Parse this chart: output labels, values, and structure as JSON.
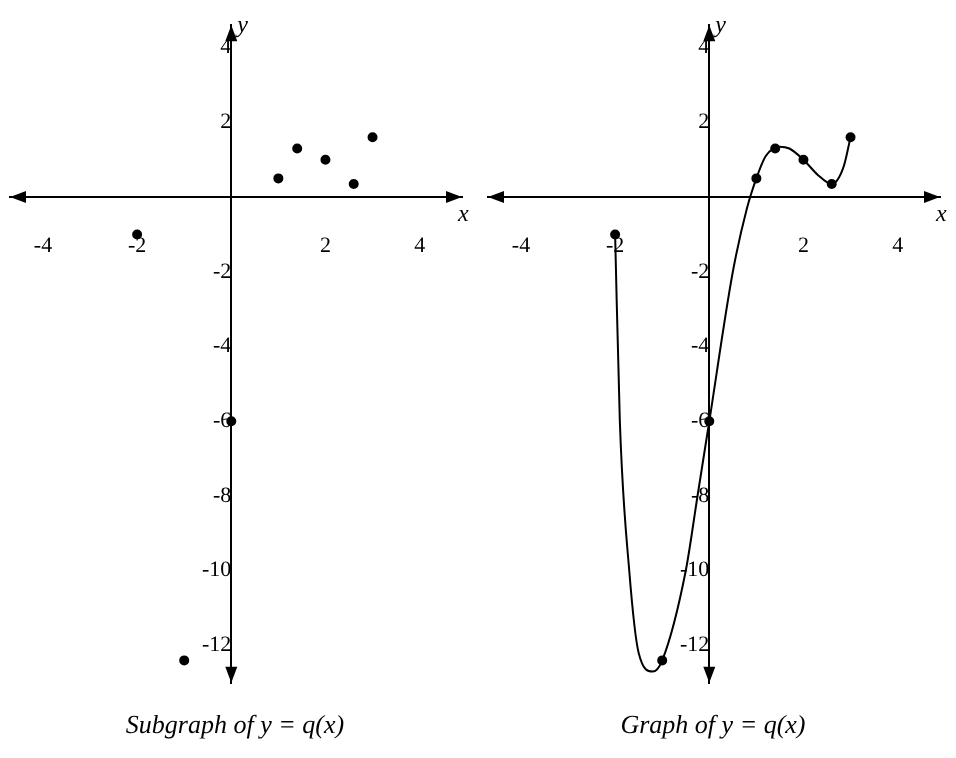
{
  "chart_data": [
    {
      "type": "scatter",
      "title": "Subgraph of y = q(x)",
      "xlabel": "x",
      "ylabel": "y",
      "x": [
        -2,
        -1,
        0,
        1,
        1.4,
        2,
        2.6,
        3
      ],
      "values": [
        -1,
        -12.4,
        -6,
        0.5,
        1.3,
        1,
        0.35,
        1.6
      ],
      "color": "#000000",
      "marker": "circle",
      "xlim": [
        -4.7,
        4.9
      ],
      "ylim": [
        -13,
        4.6
      ],
      "xticks": [
        -4,
        -2,
        2,
        4
      ],
      "yticks": [
        4,
        2,
        -2,
        -4,
        -6,
        -8,
        -10,
        -12
      ]
    },
    {
      "type": "line",
      "title": "Graph of y = q(x)",
      "xlabel": "x",
      "ylabel": "y",
      "series": [
        {
          "type": "line",
          "color": "#000000",
          "marker": "none",
          "x": [
            -2,
            -1.9,
            -1.7,
            -1.5,
            -1.2,
            -1,
            -0.5,
            -0.25,
            0,
            0.5,
            0.8,
            1,
            1.2,
            1.5,
            1.7,
            2,
            2.3,
            2.6,
            2.85,
            3
          ],
          "values": [
            -1,
            -6,
            -10,
            -12.2,
            -12.7,
            -12.4,
            -10,
            -8,
            -6,
            -2,
            -0.3,
            0.5,
            1.1,
            1.35,
            1.3,
            1,
            0.6,
            0.35,
            0.8,
            1.6
          ]
        },
        {
          "type": "scatter",
          "color": "#000000",
          "marker": "circle",
          "x": [
            -2,
            -1,
            0,
            1,
            1.4,
            2,
            2.6,
            3
          ],
          "values": [
            -1,
            -12.4,
            -6,
            0.5,
            1.3,
            1,
            0.35,
            1.6
          ]
        }
      ],
      "xlim": [
        -4.7,
        4.9
      ],
      "ylim": [
        -13,
        4.6
      ],
      "xticks": [
        -4,
        -2,
        2,
        4
      ],
      "yticks": [
        4,
        2,
        -2,
        -4,
        -6,
        -8,
        -10,
        -12
      ]
    }
  ]
}
